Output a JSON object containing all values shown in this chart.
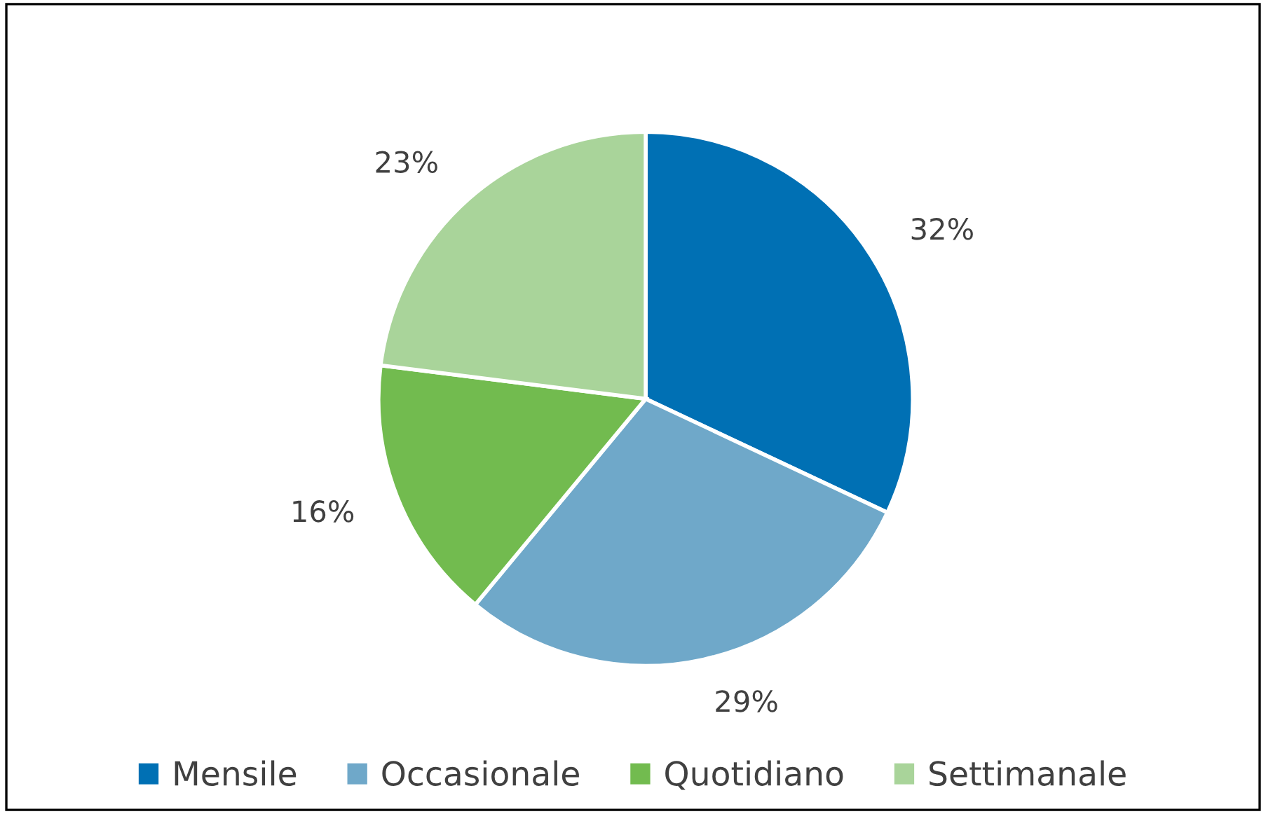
{
  "chart_data": {
    "type": "pie",
    "categories": [
      "Mensile",
      "Occasionale",
      "Quotidiano",
      "Settimanale"
    ],
    "values": [
      32,
      29,
      16,
      23
    ],
    "value_labels": [
      "32%",
      "29%",
      "16%",
      "23%"
    ],
    "colors": [
      "#0070b4",
      "#6fa8c9",
      "#72bb4f",
      "#a9d49a"
    ],
    "legend": "bottom"
  }
}
